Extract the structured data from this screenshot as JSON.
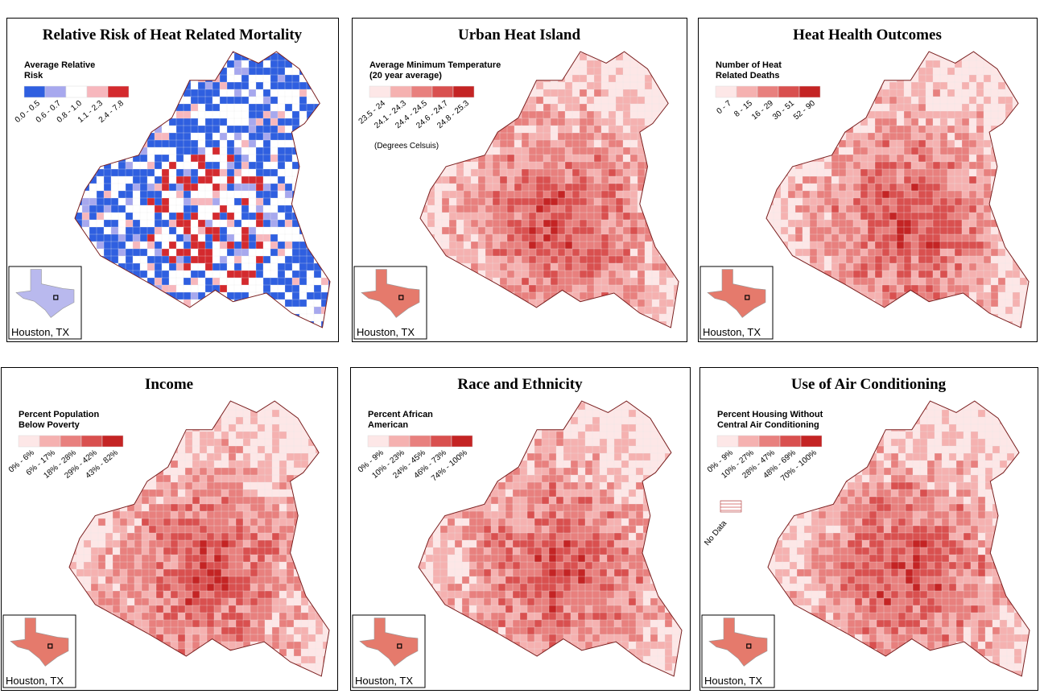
{
  "panels": [
    {
      "title": "Relative Risk of Heat Related Mortality",
      "legend": {
        "title_lines": [
          "Average Relative",
          "Risk"
        ],
        "items": [
          "0.0 - 0.5",
          "0.6 - 0.7",
          "0.8 - 1.0",
          "1.1 - 2.3",
          "2.4 - 7.8"
        ],
        "colors": [
          "#2f5fe0",
          "#a7a8ee",
          "#ffffff",
          "#f7b7bd",
          "#d42a2e"
        ]
      },
      "inset_label": "Houston, TX"
    },
    {
      "title": "Urban Heat Island",
      "legend": {
        "title_lines": [
          "Average Minimum Temperature",
          "(20 year average)"
        ],
        "items": [
          "23.5 - 24",
          "24.1 - 24.3",
          "24.4 - 24.5",
          "24.6 - 24.7",
          "24.8 - 25.3"
        ],
        "colors": [
          "#fde7e7",
          "#f5b1b0",
          "#e8807e",
          "#d9504f",
          "#c42424"
        ]
      },
      "note": "(Degrees Celsuis)",
      "inset_label": "Houston, TX"
    },
    {
      "title": "Heat Health Outcomes",
      "legend": {
        "title_lines": [
          "Number of Heat",
          "Related Deaths"
        ],
        "items": [
          "0 - 7",
          "8 - 15",
          "16 - 29",
          "30 - 51",
          "52 - 90"
        ],
        "colors": [
          "#fde7e7",
          "#f5b1b0",
          "#e8807e",
          "#d9504f",
          "#c42424"
        ]
      },
      "inset_label": "Houston, TX"
    },
    {
      "title": "Income",
      "legend": {
        "title_lines": [
          "Percent Population",
          "Below Poverty"
        ],
        "items": [
          "0% - 6%",
          "6% - 17%",
          "18% - 28%",
          "29% - 42%",
          "43% - 82%"
        ],
        "colors": [
          "#fde7e7",
          "#f5b1b0",
          "#e8807e",
          "#d9504f",
          "#c42424"
        ]
      },
      "inset_label": "Houston, TX"
    },
    {
      "title": "Race and Ethnicity",
      "legend": {
        "title_lines": [
          "Percent African",
          "American"
        ],
        "items": [
          "0% - 9%",
          "10% - 23%",
          "24% - 45%",
          "46% - 73%",
          "74% - 100%"
        ],
        "colors": [
          "#fde7e7",
          "#f5b1b0",
          "#e8807e",
          "#d9504f",
          "#c42424"
        ]
      },
      "inset_label": "Houston, TX"
    },
    {
      "title": "Use of Air Conditioning",
      "legend": {
        "title_lines": [
          "Percent Housing Without",
          "Central Air Conditioning"
        ],
        "items": [
          "0% - 9%",
          "10% - 27%",
          "28% - 47%",
          "48% - 69%",
          "70% - 100%"
        ],
        "colors": [
          "#fde7e7",
          "#f5b1b0",
          "#e8807e",
          "#d9504f",
          "#c42424"
        ]
      },
      "no_data_label": "No Data",
      "inset_label": "Houston, TX"
    }
  ]
}
